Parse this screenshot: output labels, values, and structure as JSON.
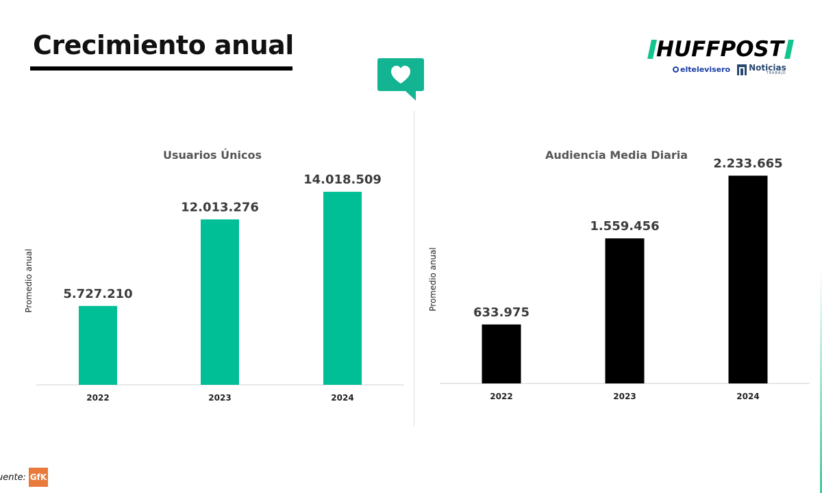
{
  "page": {
    "title": "Crecimiento anual",
    "source_label": "uente:",
    "source_logo_text": "GfK"
  },
  "logo": {
    "brand": "HUFFPOST",
    "partner_1": "eltelevisero",
    "partner_2": "Noticias",
    "partner_2_sub": "TRABAJO",
    "brand_color": "#12c58f"
  },
  "chart_data": [
    {
      "type": "bar",
      "title": "Usuarios Únicos",
      "ylabel": "Promedio anual",
      "categories": [
        "2022",
        "2023",
        "2024"
      ],
      "values": [
        5727210,
        12013276,
        14018509
      ],
      "value_labels": [
        "5.727.210",
        "12.013.276",
        "14.018.509"
      ],
      "color": "#00be96",
      "ylim": [
        0,
        18000000
      ],
      "grid": false,
      "legend": "none"
    },
    {
      "type": "bar",
      "title": "Audiencia Media Diaria",
      "ylabel": "Promedio anual",
      "categories": [
        "2022",
        "2023",
        "2024"
      ],
      "values": [
        633975,
        1559456,
        2233665
      ],
      "value_labels": [
        "633.975",
        "1.559.456",
        "2.233.665"
      ],
      "color": "#000000",
      "ylim": [
        0,
        2650000
      ],
      "grid": false,
      "legend": "none"
    }
  ]
}
